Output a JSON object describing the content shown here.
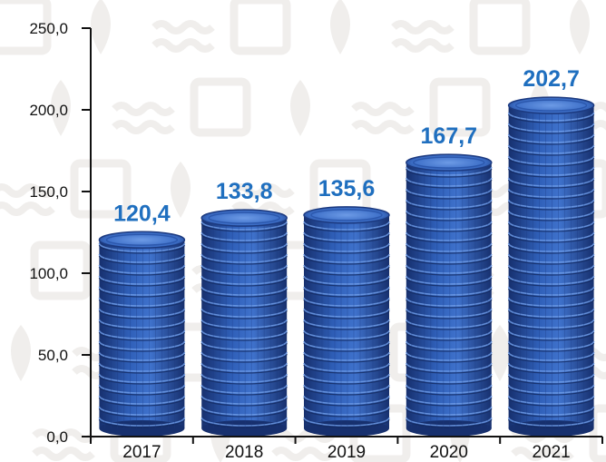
{
  "chart_data": {
    "type": "bar",
    "categories": [
      "2017",
      "2018",
      "2019",
      "2020",
      "2021"
    ],
    "values": [
      120.4,
      133.8,
      135.6,
      167.7,
      202.7
    ],
    "value_labels": [
      "120,4",
      "133,8",
      "135,6",
      "167,7",
      "202,7"
    ],
    "title": "",
    "xlabel": "",
    "ylabel": "",
    "ylim": [
      0,
      250
    ],
    "y_ticks": [
      0,
      50,
      100,
      150,
      200,
      250
    ],
    "y_tick_labels": [
      "0,0",
      "50,0",
      "100,0",
      "150,0",
      "200,0",
      "250,0"
    ],
    "grid": false,
    "legend": "none",
    "bar_style": "stacked coins",
    "colors": {
      "coin_dark": "#17306e",
      "coin_mid": "#2f5fb8",
      "coin_light": "#6d9be6",
      "label_blue": "#1f6fbf",
      "axis": "#111111",
      "background_pattern": "#f0eeec"
    }
  }
}
